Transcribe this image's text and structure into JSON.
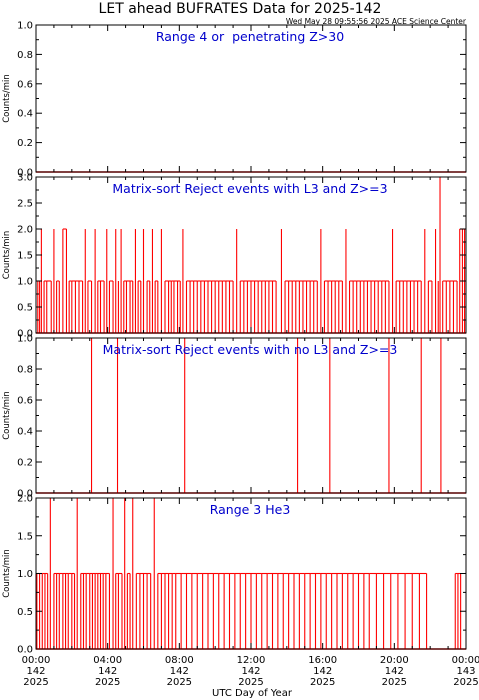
{
  "title": "LET ahead BUFRATES Data for 2025-142",
  "timestamp": "Wed May 28 09:55:56 2025 ACE Science Center",
  "xlabel": "UTC Day of Year",
  "colors": {
    "trace": "#ff0000",
    "label": "#0000cc",
    "axis": "#000000"
  },
  "xticks": [
    {
      "time": "00:00",
      "doy": "142",
      "year": "2025"
    },
    {
      "time": "04:00",
      "doy": "142",
      "year": "2025"
    },
    {
      "time": "08:00",
      "doy": "142",
      "year": "2025"
    },
    {
      "time": "12:00",
      "doy": "142",
      "year": "2025"
    },
    {
      "time": "16:00",
      "doy": "142",
      "year": "2025"
    },
    {
      "time": "20:00",
      "doy": "142",
      "year": "2025"
    },
    {
      "time": "00:00",
      "doy": "143",
      "year": "2025"
    }
  ],
  "chart_data": [
    {
      "type": "line",
      "title": "Range 4 or  penetrating Z>30",
      "ylabel": "Counts/min",
      "xlim": [
        0,
        24
      ],
      "ylim": [
        0,
        1.0
      ],
      "yticks": [
        "0.0",
        "0.2",
        "0.4",
        "0.6",
        "0.8",
        "1.0"
      ],
      "baseline": 0,
      "spikes": []
    },
    {
      "type": "line",
      "title": "Matrix-sort Reject events with L3 and Z>=3",
      "ylabel": "Counts/min",
      "xlim": [
        0,
        24
      ],
      "ylim": [
        0,
        3.0
      ],
      "yticks": [
        "0.0",
        "0.5",
        "1.0",
        "1.5",
        "2.0",
        "2.5",
        "3.0"
      ],
      "baseline": 0,
      "spikes": [
        {
          "t": 0.1,
          "v": 1
        },
        {
          "t": 0.2,
          "v": 1
        },
        {
          "t": 0.3,
          "v": 2
        },
        {
          "t": 0.45,
          "v": 1
        },
        {
          "t": 0.6,
          "v": 1
        },
        {
          "t": 0.85,
          "v": 1
        },
        {
          "t": 1.0,
          "v": 2
        },
        {
          "t": 1.15,
          "v": 1
        },
        {
          "t": 1.3,
          "v": 1
        },
        {
          "t": 1.5,
          "v": 2
        },
        {
          "t": 1.7,
          "v": 2
        },
        {
          "t": 1.85,
          "v": 1
        },
        {
          "t": 2.0,
          "v": 1
        },
        {
          "t": 2.2,
          "v": 1
        },
        {
          "t": 2.4,
          "v": 1
        },
        {
          "t": 2.6,
          "v": 1
        },
        {
          "t": 2.75,
          "v": 2
        },
        {
          "t": 2.9,
          "v": 1
        },
        {
          "t": 3.1,
          "v": 1
        },
        {
          "t": 3.3,
          "v": 2
        },
        {
          "t": 3.45,
          "v": 1
        },
        {
          "t": 3.6,
          "v": 1
        },
        {
          "t": 3.8,
          "v": 1
        },
        {
          "t": 3.95,
          "v": 2
        },
        {
          "t": 4.1,
          "v": 1
        },
        {
          "t": 4.3,
          "v": 1
        },
        {
          "t": 4.45,
          "v": 2
        },
        {
          "t": 4.6,
          "v": 1
        },
        {
          "t": 4.75,
          "v": 2
        },
        {
          "t": 4.9,
          "v": 1
        },
        {
          "t": 5.05,
          "v": 1
        },
        {
          "t": 5.25,
          "v": 1
        },
        {
          "t": 5.4,
          "v": 1
        },
        {
          "t": 5.55,
          "v": 2
        },
        {
          "t": 5.7,
          "v": 1
        },
        {
          "t": 5.85,
          "v": 1
        },
        {
          "t": 6.0,
          "v": 2
        },
        {
          "t": 6.2,
          "v": 1
        },
        {
          "t": 6.35,
          "v": 1
        },
        {
          "t": 6.5,
          "v": 2
        },
        {
          "t": 6.65,
          "v": 1
        },
        {
          "t": 6.8,
          "v": 1
        },
        {
          "t": 7.0,
          "v": 2
        },
        {
          "t": 7.2,
          "v": 1
        },
        {
          "t": 7.4,
          "v": 1
        },
        {
          "t": 7.55,
          "v": 1
        },
        {
          "t": 7.7,
          "v": 1
        },
        {
          "t": 7.9,
          "v": 1
        },
        {
          "t": 8.05,
          "v": 1
        },
        {
          "t": 8.2,
          "v": 2
        },
        {
          "t": 8.4,
          "v": 1
        },
        {
          "t": 8.6,
          "v": 1
        },
        {
          "t": 8.8,
          "v": 1
        },
        {
          "t": 9.0,
          "v": 1
        },
        {
          "t": 9.2,
          "v": 1
        },
        {
          "t": 9.4,
          "v": 1
        },
        {
          "t": 9.6,
          "v": 1
        },
        {
          "t": 9.8,
          "v": 1
        },
        {
          "t": 10.0,
          "v": 1
        },
        {
          "t": 10.2,
          "v": 1
        },
        {
          "t": 10.4,
          "v": 1
        },
        {
          "t": 10.6,
          "v": 1
        },
        {
          "t": 10.8,
          "v": 1
        },
        {
          "t": 11.0,
          "v": 1
        },
        {
          "t": 11.2,
          "v": 2
        },
        {
          "t": 11.4,
          "v": 1
        },
        {
          "t": 11.6,
          "v": 1
        },
        {
          "t": 11.8,
          "v": 1
        },
        {
          "t": 12.0,
          "v": 1
        },
        {
          "t": 12.2,
          "v": 1
        },
        {
          "t": 12.4,
          "v": 1
        },
        {
          "t": 12.6,
          "v": 1
        },
        {
          "t": 12.8,
          "v": 1
        },
        {
          "t": 13.0,
          "v": 1
        },
        {
          "t": 13.2,
          "v": 1
        },
        {
          "t": 13.4,
          "v": 1
        },
        {
          "t": 13.7,
          "v": 2
        },
        {
          "t": 13.9,
          "v": 1
        },
        {
          "t": 14.1,
          "v": 1
        },
        {
          "t": 14.3,
          "v": 1
        },
        {
          "t": 14.5,
          "v": 1
        },
        {
          "t": 14.7,
          "v": 1
        },
        {
          "t": 14.9,
          "v": 1
        },
        {
          "t": 15.1,
          "v": 1
        },
        {
          "t": 15.3,
          "v": 1
        },
        {
          "t": 15.5,
          "v": 1
        },
        {
          "t": 15.7,
          "v": 1
        },
        {
          "t": 15.9,
          "v": 2
        },
        {
          "t": 16.1,
          "v": 1
        },
        {
          "t": 16.3,
          "v": 1
        },
        {
          "t": 16.5,
          "v": 1
        },
        {
          "t": 16.7,
          "v": 1
        },
        {
          "t": 16.9,
          "v": 1
        },
        {
          "t": 17.1,
          "v": 1
        },
        {
          "t": 17.3,
          "v": 2
        },
        {
          "t": 17.5,
          "v": 1
        },
        {
          "t": 17.7,
          "v": 1
        },
        {
          "t": 17.9,
          "v": 1
        },
        {
          "t": 18.1,
          "v": 1
        },
        {
          "t": 18.3,
          "v": 1
        },
        {
          "t": 18.5,
          "v": 1
        },
        {
          "t": 18.7,
          "v": 1
        },
        {
          "t": 18.9,
          "v": 1
        },
        {
          "t": 19.1,
          "v": 1
        },
        {
          "t": 19.3,
          "v": 1
        },
        {
          "t": 19.5,
          "v": 1
        },
        {
          "t": 19.7,
          "v": 1
        },
        {
          "t": 19.9,
          "v": 2
        },
        {
          "t": 20.1,
          "v": 1
        },
        {
          "t": 20.3,
          "v": 1
        },
        {
          "t": 20.5,
          "v": 1
        },
        {
          "t": 20.7,
          "v": 1
        },
        {
          "t": 20.9,
          "v": 1
        },
        {
          "t": 21.1,
          "v": 1
        },
        {
          "t": 21.3,
          "v": 1
        },
        {
          "t": 21.5,
          "v": 1
        },
        {
          "t": 21.7,
          "v": 2
        },
        {
          "t": 21.9,
          "v": 1
        },
        {
          "t": 22.1,
          "v": 1
        },
        {
          "t": 22.3,
          "v": 2
        },
        {
          "t": 22.45,
          "v": 1
        },
        {
          "t": 22.55,
          "v": 3
        },
        {
          "t": 22.7,
          "v": 1
        },
        {
          "t": 22.9,
          "v": 1
        },
        {
          "t": 23.1,
          "v": 1
        },
        {
          "t": 23.3,
          "v": 1
        },
        {
          "t": 23.5,
          "v": 1
        },
        {
          "t": 23.65,
          "v": 2
        },
        {
          "t": 23.8,
          "v": 2
        },
        {
          "t": 23.92,
          "v": 2
        }
      ]
    },
    {
      "type": "line",
      "title": "Matrix-sort Reject events with no L3 and Z>=3",
      "ylabel": "Counts/min",
      "xlim": [
        0,
        24
      ],
      "ylim": [
        0,
        1.0
      ],
      "yticks": [
        "0.0",
        "0.2",
        "0.4",
        "0.6",
        "0.8",
        "1.0"
      ],
      "baseline": 0,
      "spikes": [
        {
          "t": 3.1,
          "v": 1
        },
        {
          "t": 4.55,
          "v": 1
        },
        {
          "t": 8.3,
          "v": 1
        },
        {
          "t": 14.6,
          "v": 1
        },
        {
          "t": 16.4,
          "v": 1
        },
        {
          "t": 19.7,
          "v": 1
        },
        {
          "t": 21.5,
          "v": 1
        },
        {
          "t": 22.6,
          "v": 1
        }
      ]
    },
    {
      "type": "line",
      "title": "Range 3 He3",
      "ylabel": "Counts/min",
      "xlim": [
        0,
        24
      ],
      "ylim": [
        0,
        2.0
      ],
      "yticks": [
        "0.0",
        "0.5",
        "1.0",
        "1.5",
        "2.0"
      ],
      "baseline": 0,
      "spikes": [
        {
          "t": 0.05,
          "v": 1
        },
        {
          "t": 0.2,
          "v": 1
        },
        {
          "t": 0.35,
          "v": 1
        },
        {
          "t": 0.5,
          "v": 1
        },
        {
          "t": 0.65,
          "v": 1
        },
        {
          "t": 0.8,
          "v": 2
        },
        {
          "t": 1.0,
          "v": 1
        },
        {
          "t": 1.15,
          "v": 1
        },
        {
          "t": 1.3,
          "v": 1
        },
        {
          "t": 1.5,
          "v": 1
        },
        {
          "t": 1.65,
          "v": 1
        },
        {
          "t": 1.8,
          "v": 1
        },
        {
          "t": 2.0,
          "v": 1
        },
        {
          "t": 2.15,
          "v": 1
        },
        {
          "t": 2.3,
          "v": 2
        },
        {
          "t": 2.5,
          "v": 1
        },
        {
          "t": 2.65,
          "v": 1
        },
        {
          "t": 2.8,
          "v": 1
        },
        {
          "t": 3.0,
          "v": 1
        },
        {
          "t": 3.15,
          "v": 1
        },
        {
          "t": 3.3,
          "v": 1
        },
        {
          "t": 3.45,
          "v": 1
        },
        {
          "t": 3.6,
          "v": 1
        },
        {
          "t": 3.75,
          "v": 1
        },
        {
          "t": 3.9,
          "v": 1
        },
        {
          "t": 4.1,
          "v": 1
        },
        {
          "t": 4.3,
          "v": 2
        },
        {
          "t": 4.45,
          "v": 1
        },
        {
          "t": 4.6,
          "v": 1
        },
        {
          "t": 4.8,
          "v": 1
        },
        {
          "t": 4.95,
          "v": 2
        },
        {
          "t": 5.1,
          "v": 1
        },
        {
          "t": 5.25,
          "v": 1
        },
        {
          "t": 5.4,
          "v": 2
        },
        {
          "t": 5.6,
          "v": 1
        },
        {
          "t": 5.8,
          "v": 1
        },
        {
          "t": 6.0,
          "v": 1
        },
        {
          "t": 6.2,
          "v": 1
        },
        {
          "t": 6.4,
          "v": 1
        },
        {
          "t": 6.6,
          "v": 2
        },
        {
          "t": 6.8,
          "v": 1
        },
        {
          "t": 7.0,
          "v": 1
        },
        {
          "t": 7.2,
          "v": 1
        },
        {
          "t": 7.4,
          "v": 1
        },
        {
          "t": 7.6,
          "v": 1
        },
        {
          "t": 7.8,
          "v": 1
        },
        {
          "t": 8.1,
          "v": 1
        },
        {
          "t": 8.4,
          "v": 1
        },
        {
          "t": 8.7,
          "v": 1
        },
        {
          "t": 9.0,
          "v": 1
        },
        {
          "t": 9.3,
          "v": 1
        },
        {
          "t": 9.6,
          "v": 1
        },
        {
          "t": 9.9,
          "v": 1
        },
        {
          "t": 10.2,
          "v": 1
        },
        {
          "t": 10.5,
          "v": 1
        },
        {
          "t": 10.8,
          "v": 1
        },
        {
          "t": 11.1,
          "v": 1
        },
        {
          "t": 11.4,
          "v": 1
        },
        {
          "t": 11.7,
          "v": 1
        },
        {
          "t": 12.0,
          "v": 1
        },
        {
          "t": 12.3,
          "v": 1
        },
        {
          "t": 12.6,
          "v": 1
        },
        {
          "t": 12.9,
          "v": 1
        },
        {
          "t": 13.2,
          "v": 1
        },
        {
          "t": 13.5,
          "v": 1
        },
        {
          "t": 13.8,
          "v": 1
        },
        {
          "t": 14.1,
          "v": 1
        },
        {
          "t": 14.4,
          "v": 1
        },
        {
          "t": 14.7,
          "v": 1
        },
        {
          "t": 15.0,
          "v": 1
        },
        {
          "t": 15.3,
          "v": 1
        },
        {
          "t": 15.6,
          "v": 1
        },
        {
          "t": 15.9,
          "v": 1
        },
        {
          "t": 16.2,
          "v": 1
        },
        {
          "t": 16.5,
          "v": 1
        },
        {
          "t": 16.8,
          "v": 1
        },
        {
          "t": 17.1,
          "v": 1
        },
        {
          "t": 17.4,
          "v": 1
        },
        {
          "t": 17.7,
          "v": 1
        },
        {
          "t": 18.0,
          "v": 1
        },
        {
          "t": 18.3,
          "v": 1
        },
        {
          "t": 18.6,
          "v": 1
        },
        {
          "t": 19.0,
          "v": 1
        },
        {
          "t": 19.4,
          "v": 1
        },
        {
          "t": 19.8,
          "v": 1
        },
        {
          "t": 20.2,
          "v": 1
        },
        {
          "t": 20.6,
          "v": 1
        },
        {
          "t": 21.0,
          "v": 1
        },
        {
          "t": 21.4,
          "v": 1
        },
        {
          "t": 21.8,
          "v": 1
        },
        {
          "t": 23.4,
          "v": 1
        },
        {
          "t": 23.55,
          "v": 1
        },
        {
          "t": 23.7,
          "v": 1
        }
      ]
    }
  ]
}
